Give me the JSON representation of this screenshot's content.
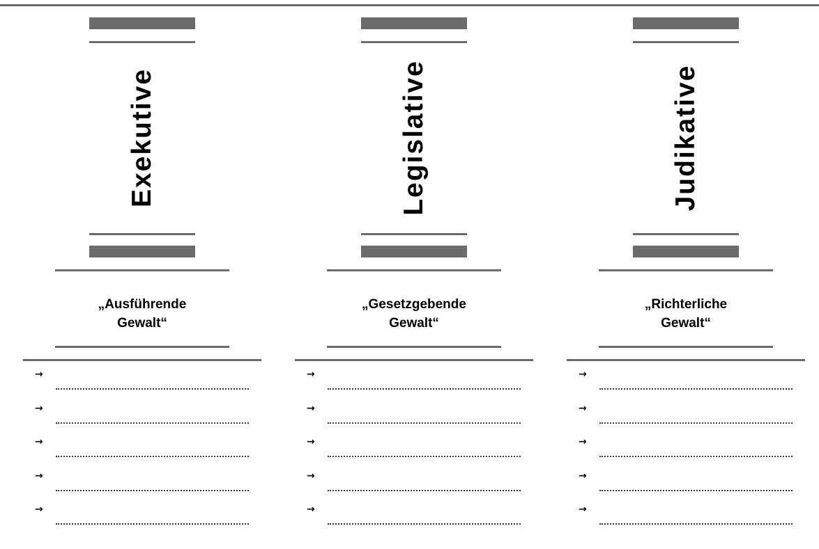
{
  "colors": {
    "rule": "#6b6b6b",
    "block": "#6b6b6b"
  },
  "columns": [
    {
      "title": "Exekutive",
      "subtitle_line1": "„Ausführende",
      "subtitle_line2": "Gewalt“",
      "items": [
        "→",
        "→",
        "→",
        "→",
        "→"
      ]
    },
    {
      "title": "Legislative",
      "subtitle_line1": "„Gesetzgebende",
      "subtitle_line2": "Gewalt“",
      "items": [
        "→",
        "→",
        "→",
        "→",
        "→"
      ]
    },
    {
      "title": "Judikative",
      "subtitle_line1": "„Richterliche",
      "subtitle_line2": "Gewalt“",
      "items": [
        "→",
        "→",
        "→",
        "→",
        "→"
      ]
    }
  ]
}
